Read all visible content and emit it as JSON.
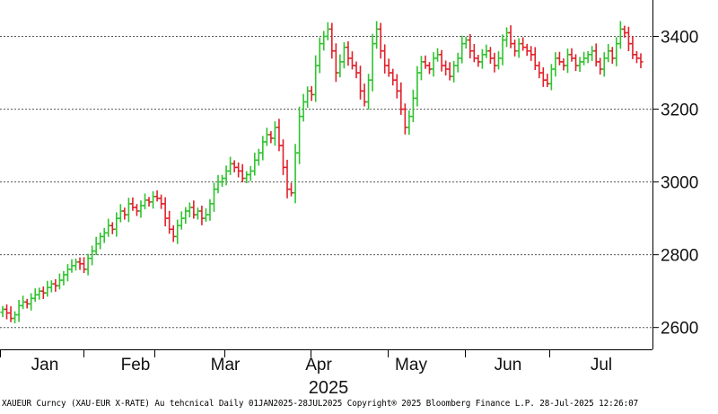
{
  "chart_data": {
    "type": "ohlc",
    "title": "",
    "xlabel": "2025",
    "ylabel": "",
    "ylim": [
      2540,
      3500
    ],
    "yticks": [
      2600,
      2800,
      3000,
      3200,
      3400
    ],
    "grid": "horizontal-dotted",
    "month_labels": [
      "Jan",
      "Feb",
      "Mar",
      "Apr",
      "May",
      "Jun",
      "Jul"
    ],
    "up_color": "#2ec32e",
    "down_color": "#e0202a",
    "closes": [
      2650,
      2640,
      2625,
      2635,
      2660,
      2670,
      2665,
      2680,
      2690,
      2700,
      2695,
      2710,
      2720,
      2715,
      2730,
      2745,
      2760,
      2770,
      2780,
      2775,
      2760,
      2790,
      2810,
      2830,
      2850,
      2860,
      2880,
      2870,
      2900,
      2920,
      2910,
      2940,
      2930,
      2920,
      2935,
      2950,
      2945,
      2960,
      2955,
      2940,
      2900,
      2870,
      2850,
      2880,
      2900,
      2920,
      2930,
      2910,
      2920,
      2900,
      2910,
      2940,
      2980,
      3000,
      3010,
      3030,
      3050,
      3040,
      3030,
      3010,
      3020,
      3030,
      3060,
      3080,
      3110,
      3130,
      3120,
      3150,
      3100,
      3040,
      2980,
      2970,
      3080,
      3180,
      3220,
      3250,
      3240,
      3320,
      3380,
      3400,
      3420,
      3360,
      3300,
      3330,
      3370,
      3340,
      3320,
      3300,
      3250,
      3220,
      3280,
      3380,
      3420,
      3360,
      3320,
      3300,
      3280,
      3250,
      3200,
      3150,
      3180,
      3230,
      3300,
      3330,
      3320,
      3310,
      3340,
      3350,
      3320,
      3310,
      3290,
      3320,
      3340,
      3380,
      3390,
      3360,
      3340,
      3330,
      3350,
      3360,
      3340,
      3320,
      3340,
      3390,
      3410,
      3380,
      3360,
      3380,
      3370,
      3360,
      3350,
      3320,
      3300,
      3280,
      3270,
      3310,
      3340,
      3330,
      3320,
      3350,
      3340,
      3320,
      3330,
      3340,
      3350,
      3360,
      3330,
      3310,
      3340,
      3360,
      3340,
      3380,
      3420,
      3410,
      3380,
      3350,
      3340,
      3330
    ]
  },
  "footer": {
    "text": "XAUEUR Curncy (XAU-EUR X-RATE) Au tehcnical  Daily 01JAN2025-28JUL2025 Copyright® 2025 Bloomberg Finance L.P.  28-Jul-2025 12:26:07"
  }
}
